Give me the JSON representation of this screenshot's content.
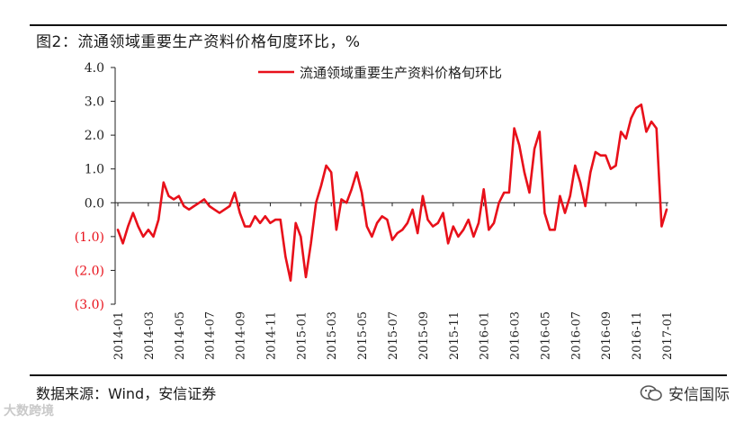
{
  "header": {
    "title": "图2：流通领域重要生产资料价格旬度环比，%"
  },
  "footer": {
    "source": "数据来源：Wind，安信证券"
  },
  "watermarks": {
    "left": "大数跨境",
    "right": "安信国际"
  },
  "colors": {
    "series": "#e8101a",
    "negative_label": "#e8101a",
    "axis": "#222222"
  },
  "chart_data": {
    "type": "line",
    "title": "",
    "xlabel": "",
    "ylabel": "",
    "ylim": [
      -3.0,
      4.0
    ],
    "yticks": [
      4.0,
      3.0,
      2.0,
      1.0,
      0.0,
      -1.0,
      -2.0,
      -3.0
    ],
    "ytick_labels": [
      "4.0",
      "3.0",
      "2.0",
      "1.0",
      "0.0",
      "(1.0)",
      "(2.0)",
      "(3.0)"
    ],
    "grid": false,
    "legend_position": "top-center",
    "xtick_labels": [
      "2014-01",
      "2014-03",
      "2014-05",
      "2014-07",
      "2014-09",
      "2014-11",
      "2015-01",
      "2015-03",
      "2015-05",
      "2015-07",
      "2015-09",
      "2015-11",
      "2016-01",
      "2016-03",
      "2016-05",
      "2016-07",
      "2016-09",
      "2016-11",
      "2017-01"
    ],
    "series": [
      {
        "name": "流通领域重要生产资料价格旬环比",
        "values": [
          -0.8,
          -1.2,
          -0.7,
          -0.3,
          -0.7,
          -1.0,
          -0.8,
          -1.0,
          -0.5,
          0.6,
          0.2,
          0.1,
          0.2,
          -0.1,
          -0.2,
          -0.1,
          0.0,
          0.1,
          -0.1,
          -0.2,
          -0.3,
          -0.2,
          -0.1,
          0.3,
          -0.3,
          -0.7,
          -0.7,
          -0.4,
          -0.6,
          -0.4,
          -0.6,
          -0.5,
          -0.5,
          -1.6,
          -2.3,
          -0.6,
          -1.0,
          -2.2,
          -1.2,
          0.0,
          0.5,
          1.1,
          0.9,
          -0.8,
          0.1,
          0.0,
          0.4,
          0.9,
          0.3,
          -0.7,
          -1.0,
          -0.6,
          -0.4,
          -0.5,
          -1.1,
          -0.9,
          -0.8,
          -0.6,
          -0.2,
          -0.9,
          0.2,
          -0.5,
          -0.7,
          -0.6,
          -0.3,
          -1.2,
          -0.7,
          -1.0,
          -0.8,
          -0.5,
          -1.0,
          -0.6,
          0.4,
          -0.8,
          -0.6,
          0.0,
          0.3,
          0.3,
          2.2,
          1.7,
          0.9,
          0.3,
          1.6,
          2.1,
          -0.3,
          -0.8,
          -0.8,
          0.2,
          -0.3,
          0.2,
          1.1,
          0.6,
          -0.1,
          0.9,
          1.5,
          1.4,
          1.4,
          1.0,
          1.1,
          2.1,
          1.9,
          2.5,
          2.8,
          2.9,
          2.1,
          2.4,
          2.2,
          -0.7,
          -0.2
        ]
      }
    ]
  }
}
